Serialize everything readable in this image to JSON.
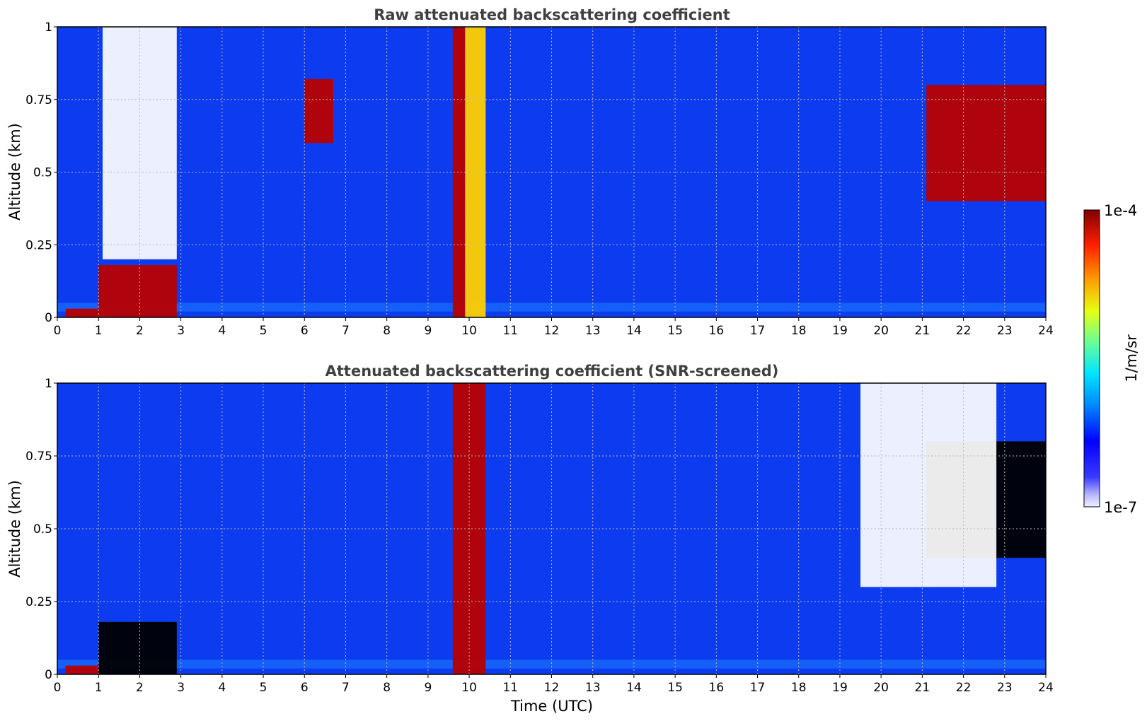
{
  "chart_data": [
    {
      "type": "heatmap",
      "title": "Raw attenuated backscattering coefficient",
      "xlabel": "",
      "ylabel": "Altitude (km)",
      "xlim": [
        0,
        24
      ],
      "ylim": [
        0,
        1
      ],
      "x_ticks": [
        "0",
        "1",
        "2",
        "3",
        "4",
        "5",
        "6",
        "7",
        "8",
        "9",
        "10",
        "11",
        "12",
        "13",
        "14",
        "15",
        "16",
        "17",
        "18",
        "19",
        "20",
        "21",
        "22",
        "23",
        "24"
      ],
      "y_ticks": [
        "0",
        "0.25",
        "0.5",
        "0.75",
        "1"
      ],
      "grid": true,
      "features": [
        {
          "label": "surface layer",
          "x": [
            0.2,
            1.0
          ],
          "y": [
            0,
            0.03
          ],
          "level": "high"
        },
        {
          "label": "low cloud",
          "x": [
            1.0,
            2.9
          ],
          "y": [
            0,
            0.18
          ],
          "level": "high"
        },
        {
          "label": "signal gap",
          "x": [
            1.1,
            2.9
          ],
          "y": [
            0.2,
            1.0
          ],
          "level": "none"
        },
        {
          "label": "cloud",
          "x": [
            6.0,
            6.7
          ],
          "y": [
            0.6,
            0.82
          ],
          "level": "high"
        },
        {
          "label": "precipitation",
          "x": [
            9.6,
            9.9
          ],
          "y": [
            0,
            1.0
          ],
          "level": "high"
        },
        {
          "label": "precipitation",
          "x": [
            9.9,
            10.4
          ],
          "y": [
            0,
            1.0
          ],
          "level": "medium"
        },
        {
          "label": "cloud layer",
          "x": [
            21.1,
            24
          ],
          "y": [
            0.4,
            0.8
          ],
          "level": "high"
        }
      ]
    },
    {
      "type": "heatmap",
      "title": "Attenuated backscattering coefficient (SNR-screened)",
      "xlabel": "Time (UTC)",
      "ylabel": "Altitude (km)",
      "xlim": [
        0,
        24
      ],
      "ylim": [
        0,
        1
      ],
      "x_ticks": [
        "0",
        "1",
        "2",
        "3",
        "4",
        "5",
        "6",
        "7",
        "8",
        "9",
        "10",
        "11",
        "12",
        "13",
        "14",
        "15",
        "16",
        "17",
        "18",
        "19",
        "20",
        "21",
        "22",
        "23",
        "24"
      ],
      "y_ticks": [
        "0",
        "0.25",
        "0.5",
        "0.75",
        "1"
      ],
      "grid": true,
      "features": [
        {
          "label": "surface layer",
          "x": [
            0.2,
            1.0
          ],
          "y": [
            0,
            0.03
          ],
          "level": "high"
        },
        {
          "label": "low cloud",
          "x": [
            1.0,
            2.9
          ],
          "y": [
            0,
            0.18
          ],
          "level": "saturated"
        },
        {
          "label": "precipitation",
          "x": [
            9.6,
            10.4
          ],
          "y": [
            0,
            1.0
          ],
          "level": "high"
        },
        {
          "label": "cloud layer",
          "x": [
            21.1,
            24
          ],
          "y": [
            0.4,
            0.8
          ],
          "level": "saturated"
        },
        {
          "label": "screened region",
          "x": [
            19.5,
            22.8
          ],
          "y": [
            0.3,
            1.0
          ],
          "level": "none"
        }
      ]
    }
  ],
  "colorbar": {
    "max_label": "1e-4",
    "min_label": "1e-7",
    "unit_label": "1/m/sr",
    "colormap": "jet",
    "scale": "log"
  },
  "colors": {
    "background": "#0d3cf0",
    "low": "#0a2ae0",
    "high": "#8b0000",
    "saturated": "#000000",
    "grid": "#bbbbbb",
    "title": "#404040"
  }
}
